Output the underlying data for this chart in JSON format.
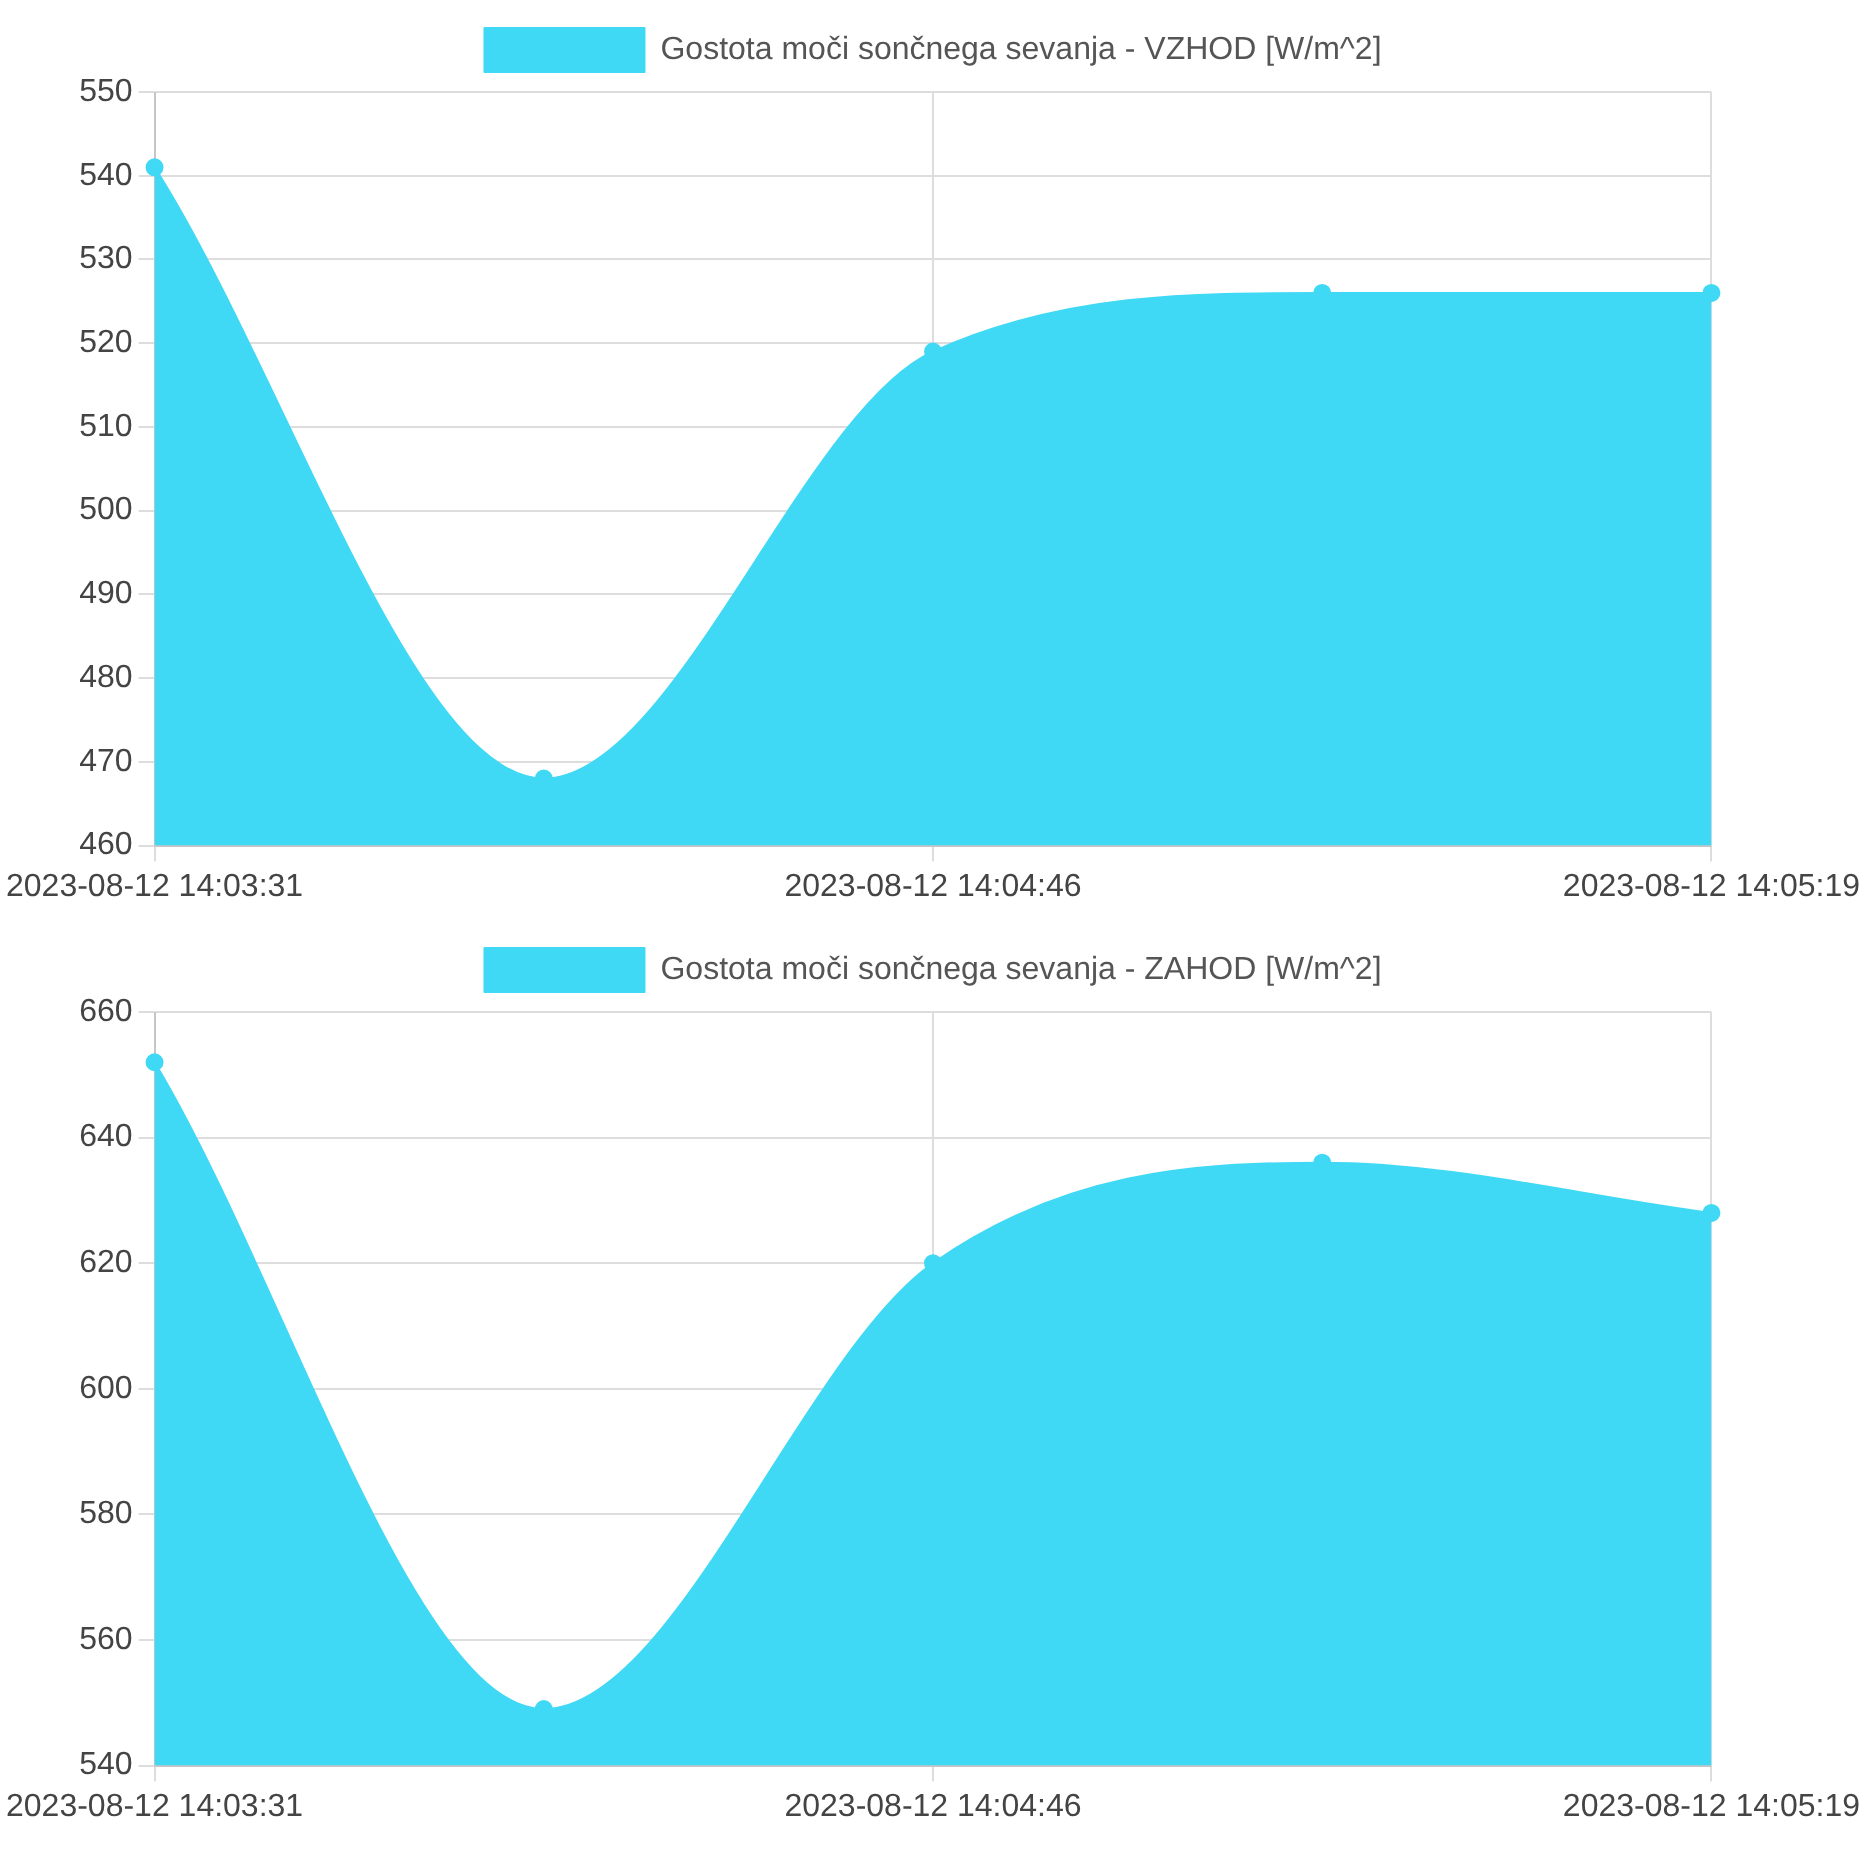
{
  "chart_data": [
    {
      "type": "area",
      "categories": [
        "2023-08-12 14:03:31",
        null,
        "2023-08-12 14:04:46",
        null,
        "2023-08-12 14:05:19"
      ],
      "series": [
        {
          "name": "Gostota moči sončnega sevanja - VZHOD [W/m^2]",
          "color": "#40d9f5",
          "values": [
            541,
            468,
            519,
            526,
            526
          ]
        }
      ],
      "ylim": [
        460,
        550
      ],
      "yticks": [
        460,
        470,
        480,
        490,
        500,
        510,
        520,
        530,
        540,
        550
      ],
      "grid": true,
      "legend": "top",
      "marker": "circle"
    },
    {
      "type": "area",
      "categories": [
        "2023-08-12 14:03:31",
        null,
        "2023-08-12 14:04:46",
        null,
        "2023-08-12 14:05:19"
      ],
      "series": [
        {
          "name": "Gostota moči sončnega sevanja - ZAHOD [W/m^2]",
          "color": "#40d9f5",
          "values": [
            652,
            549,
            620,
            636,
            628
          ]
        }
      ],
      "ylim": [
        540,
        660
      ],
      "yticks": [
        540,
        560,
        580,
        600,
        620,
        640,
        660
      ],
      "grid": true,
      "legend": "top",
      "marker": "circle"
    }
  ]
}
